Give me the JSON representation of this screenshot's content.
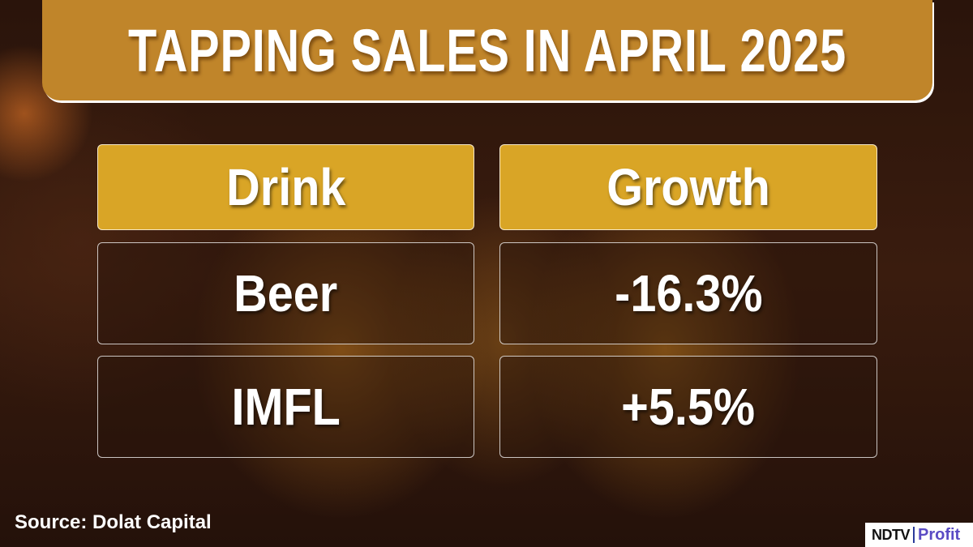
{
  "title": "TAPPING SALES IN APRIL 2025",
  "table": {
    "headers": [
      "Drink",
      "Growth"
    ],
    "rows": [
      {
        "drink": "Beer",
        "growth": "-16.3%"
      },
      {
        "drink": "IMFL",
        "growth": "+5.5%"
      }
    ]
  },
  "source": "Source: Dolat Capital",
  "logo": {
    "brand": "NDTV",
    "sub": "Profit"
  },
  "colors": {
    "title_bg": "#c0852a",
    "header_bg": "#d9a526",
    "text": "#ffffff"
  }
}
